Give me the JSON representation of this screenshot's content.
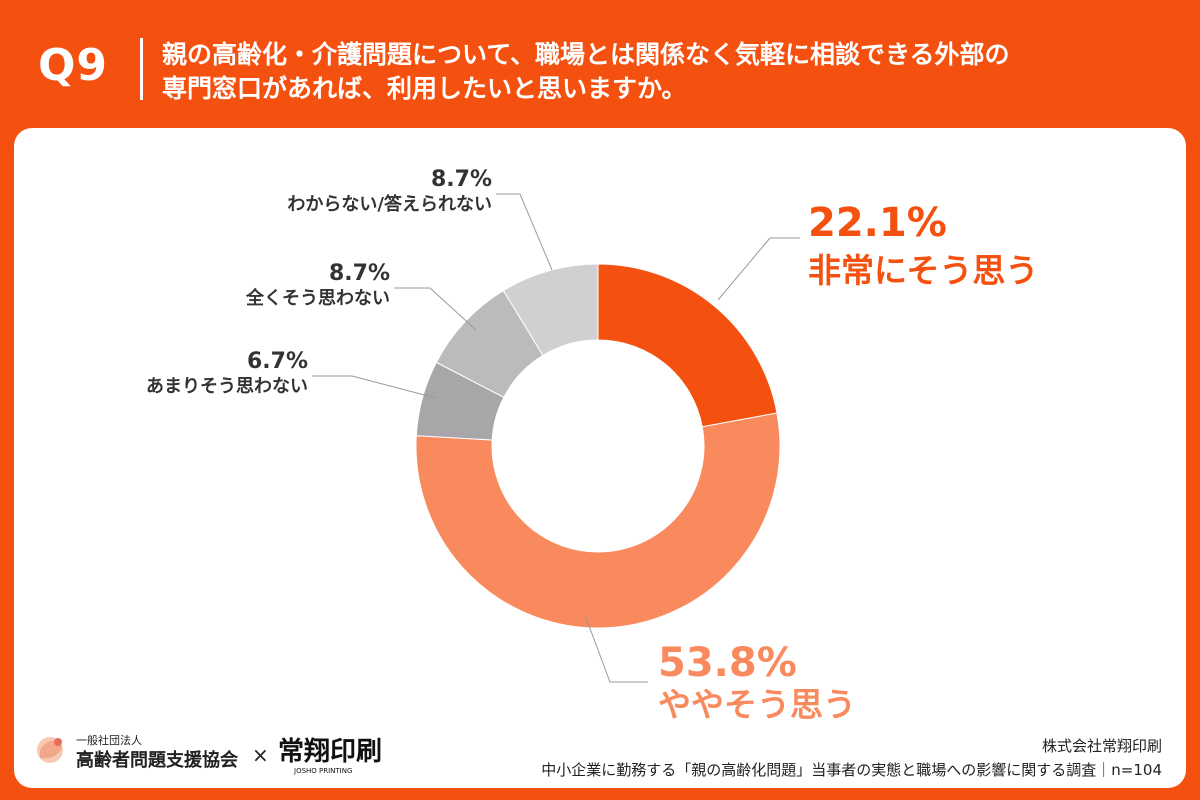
{
  "header": {
    "q_number": "Q9",
    "question_line1": "親の高齢化・介護問題について、職場とは関係なく気軽に相談できる外部の",
    "question_line2": "専門窓口があれば、利用したいと思いますか。"
  },
  "chart_data": {
    "type": "pie",
    "variant": "donut",
    "slices": [
      {
        "label": "非常にそう思う",
        "value": 22.1,
        "value_text": "22.1%",
        "color": "#F4500F"
      },
      {
        "label": "ややそう思う",
        "value": 53.8,
        "value_text": "53.8%",
        "color": "#F98A5E"
      },
      {
        "label": "あまりそう思わない",
        "value": 6.7,
        "value_text": "6.7%",
        "color": "#A8A6A9"
      },
      {
        "label": "全くそう思わない",
        "value": 8.7,
        "value_text": "8.7%",
        "color": "#BBBABD"
      },
      {
        "label": "わからない/答えられない",
        "value": 8.7,
        "value_text": "8.7%",
        "color": "#D0CFD2"
      }
    ]
  },
  "footer": {
    "org_small": "一般社団法人",
    "org_name": "高齢者問題支援協会",
    "times": "×",
    "partner_logo": "常翔印刷",
    "partner_sub": "JOSHO PRINTING",
    "company": "株式会社常翔印刷",
    "survey": "中小企業に勤務する「親の高齢化問題」当事者の実態と職場への影響に関する調査｜n=104"
  },
  "colors": {
    "brand": "#F4500F",
    "text_dark": "#333333",
    "leader": "#9A9A9A"
  }
}
